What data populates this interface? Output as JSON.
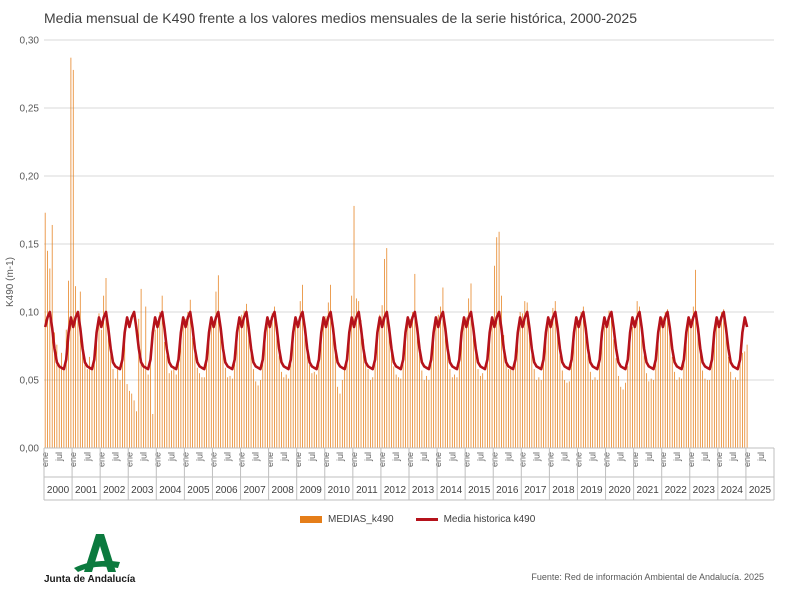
{
  "chart_data": {
    "type": "bar",
    "title": "Media mensual de K490 frente a los valores medios mensuales de la serie histórica, 2000-2025",
    "ylabel": "K490 (m-1)",
    "xlabel": "",
    "ylim": [
      0,
      0.3
    ],
    "ytick_labels": [
      "0,00",
      "0,05",
      "0,10",
      "0,15",
      "0,20",
      "0,25",
      "0,30"
    ],
    "month_tick_labels": [
      "ene",
      "jul"
    ],
    "years": [
      "2000",
      "2001",
      "2002",
      "2003",
      "2004",
      "2005",
      "2006",
      "2007",
      "2008",
      "2009",
      "2010",
      "2011",
      "2012",
      "2013",
      "2014",
      "2015",
      "2016",
      "2017",
      "2018",
      "2019",
      "2020",
      "2021",
      "2022",
      "2023",
      "2024",
      "2025"
    ],
    "grid": true,
    "legend_position": "bottom",
    "series": [
      {
        "name": "MEDIAS_k490",
        "kind": "bar",
        "color": "#E57E19",
        "values": [
          [
            0.173,
            0.145,
            0.132,
            0.164,
            0.085,
            0.076,
            0.062,
            0.07,
            0.058,
            0.087,
            0.123,
            0.287
          ],
          [
            0.278,
            0.119,
            0.098,
            0.115,
            0.078,
            0.066,
            0.058,
            0.067,
            0.06,
            0.072,
            0.088,
            0.099
          ],
          [
            0.087,
            0.112,
            0.125,
            0.082,
            0.069,
            0.058,
            0.051,
            0.06,
            0.05,
            0.063,
            0.079,
            0.047
          ],
          [
            0.042,
            0.04,
            0.035,
            0.027,
            0.095,
            0.117,
            0.062,
            0.104,
            0.054,
            0.066,
            0.025,
            0.087
          ],
          [
            0.089,
            0.1,
            0.112,
            0.078,
            0.068,
            0.055,
            0.057,
            0.058,
            0.054,
            0.062,
            0.086,
            0.094
          ],
          [
            0.095,
            0.1,
            0.109,
            0.081,
            0.069,
            0.059,
            0.055,
            0.052,
            0.052,
            0.065,
            0.081,
            0.092
          ],
          [
            0.092,
            0.115,
            0.127,
            0.085,
            0.07,
            0.059,
            0.052,
            0.053,
            0.051,
            0.064,
            0.083,
            0.096
          ],
          [
            0.098,
            0.101,
            0.106,
            0.083,
            0.07,
            0.058,
            0.049,
            0.046,
            0.05,
            0.063,
            0.081,
            0.094
          ],
          [
            0.094,
            0.099,
            0.104,
            0.082,
            0.068,
            0.056,
            0.052,
            0.054,
            0.051,
            0.062,
            0.08,
            0.092
          ],
          [
            0.093,
            0.108,
            0.12,
            0.086,
            0.072,
            0.061,
            0.055,
            0.056,
            0.054,
            0.066,
            0.085,
            0.096
          ],
          [
            0.097,
            0.107,
            0.12,
            0.09,
            0.07,
            0.045,
            0.04,
            0.05,
            0.06,
            0.07,
            0.09,
            0.112
          ],
          [
            0.178,
            0.11,
            0.108,
            0.094,
            0.08,
            0.062,
            0.058,
            0.05,
            0.052,
            0.064,
            0.084,
            0.098
          ],
          [
            0.105,
            0.139,
            0.147,
            0.09,
            0.072,
            0.06,
            0.054,
            0.052,
            0.051,
            0.064,
            0.085,
            0.095
          ],
          [
            0.095,
            0.1,
            0.128,
            0.082,
            0.069,
            0.057,
            0.05,
            0.053,
            0.05,
            0.062,
            0.079,
            0.091
          ],
          [
            0.098,
            0.104,
            0.118,
            0.086,
            0.07,
            0.058,
            0.052,
            0.054,
            0.052,
            0.065,
            0.083,
            0.094
          ],
          [
            0.096,
            0.11,
            0.121,
            0.087,
            0.071,
            0.058,
            0.053,
            0.055,
            0.05,
            0.064,
            0.084,
            0.095
          ],
          [
            0.134,
            0.155,
            0.159,
            0.112,
            0.083,
            0.064,
            0.058,
            0.06,
            0.057,
            0.069,
            0.089,
            0.1
          ],
          [
            0.099,
            0.108,
            0.107,
            0.085,
            0.07,
            0.058,
            0.05,
            0.052,
            0.05,
            0.063,
            0.082,
            0.093
          ],
          [
            0.095,
            0.103,
            0.108,
            0.083,
            0.068,
            0.057,
            0.05,
            0.048,
            0.049,
            0.062,
            0.08,
            0.091
          ],
          [
            0.094,
            0.1,
            0.104,
            0.082,
            0.068,
            0.056,
            0.05,
            0.052,
            0.05,
            0.062,
            0.078,
            0.09
          ],
          [
            0.093,
            0.101,
            0.1,
            0.08,
            0.066,
            0.053,
            0.045,
            0.043,
            0.048,
            0.06,
            0.077,
            0.089
          ],
          [
            0.094,
            0.108,
            0.104,
            0.083,
            0.068,
            0.055,
            0.049,
            0.051,
            0.05,
            0.062,
            0.079,
            0.091
          ],
          [
            0.096,
            0.1,
            0.102,
            0.082,
            0.067,
            0.056,
            0.05,
            0.052,
            0.051,
            0.063,
            0.08,
            0.092
          ],
          [
            0.095,
            0.104,
            0.131,
            0.086,
            0.069,
            0.057,
            0.051,
            0.05,
            0.05,
            0.063,
            0.081,
            0.092
          ],
          [
            0.094,
            0.1,
            0.102,
            0.083,
            0.067,
            0.056,
            0.05,
            0.052,
            0.05,
            0.062,
            0.07,
            0.071
          ],
          [
            0.076
          ]
        ]
      },
      {
        "name": "Media historica k490",
        "kind": "line",
        "color": "#B5121B",
        "values": [
          0.089,
          0.096,
          0.1,
          0.088,
          0.073,
          0.063,
          0.06,
          0.059,
          0.058,
          0.065,
          0.085,
          0.096
        ]
      }
    ]
  },
  "legend": {
    "bar_label": "MEDIAS_k490",
    "line_label": "Media historica k490"
  },
  "source_text": "Fuente: Red de información Ambiental de Andalucía. 2025",
  "logo_text": "Junta de Andalucía",
  "colors": {
    "bar": "#E57E19",
    "line": "#B5121B",
    "logo": "#0B7A3E"
  }
}
